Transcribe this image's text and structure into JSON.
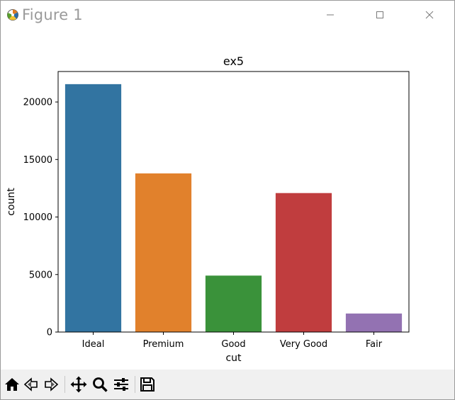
{
  "window": {
    "title": "Figure 1"
  },
  "chart_data": {
    "type": "bar",
    "title": "ex5",
    "xlabel": "cut",
    "ylabel": "count",
    "categories": [
      "Ideal",
      "Premium",
      "Good",
      "Very Good",
      "Fair"
    ],
    "values": [
      21551,
      13791,
      4906,
      12082,
      1610
    ],
    "colors": [
      "#3274a1",
      "#e1812c",
      "#3a923a",
      "#c03d3e",
      "#9372b2"
    ],
    "ylim": [
      0,
      22650
    ],
    "yticks": [
      0,
      5000,
      10000,
      15000,
      20000
    ],
    "grid": false
  },
  "toolbar": {
    "buttons": [
      {
        "name": "home-icon"
      },
      {
        "name": "back-icon"
      },
      {
        "name": "forward-icon"
      },
      {
        "name": "pan-icon"
      },
      {
        "name": "zoom-icon"
      },
      {
        "name": "configure-subplots-icon"
      },
      {
        "name": "save-icon"
      }
    ]
  }
}
